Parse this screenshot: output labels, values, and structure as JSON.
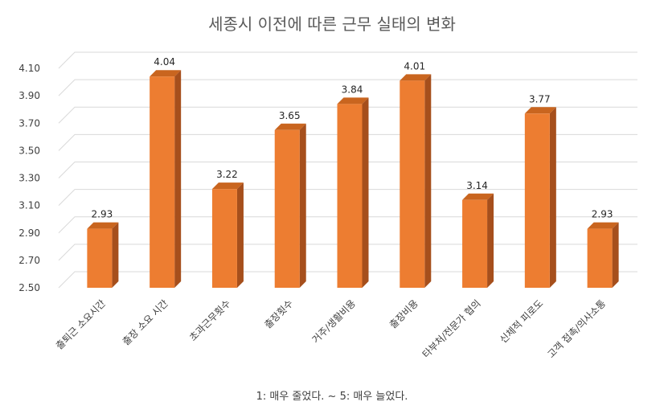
{
  "chart_data": {
    "type": "bar",
    "style": "3d-column",
    "title": "세종시 이전에 따른 근무 실태의 변화",
    "note": "1: 매우 줄었다. ~ 5: 매우 늘었다.",
    "categories": [
      "출퇴근 소요시간",
      "출장 소요 시간",
      "초과근무횟수",
      "출장횟수",
      "거주/생활비용",
      "출장비용",
      "타부처/전문가 협의",
      "신체적 피로도",
      "고객 접촉/의사소통"
    ],
    "values": [
      2.93,
      4.04,
      3.22,
      3.65,
      3.84,
      4.01,
      3.14,
      3.77,
      2.93
    ],
    "value_labels": [
      "2.93",
      "4.04",
      "3.22",
      "3.65",
      "3.84",
      "4.01",
      "3.14",
      "3.77",
      "2.93"
    ],
    "ylim": [
      2.5,
      4.1
    ],
    "yticks": [
      "2.50",
      "2.70",
      "2.90",
      "3.10",
      "3.30",
      "3.50",
      "3.70",
      "3.90",
      "4.10"
    ],
    "grid": true,
    "legend": "none",
    "colors": {
      "bar_front": "#ED7D31",
      "bar_side": "#A64F1C",
      "bar_top": "#C9651F",
      "grid": "#D9D9D9"
    }
  }
}
